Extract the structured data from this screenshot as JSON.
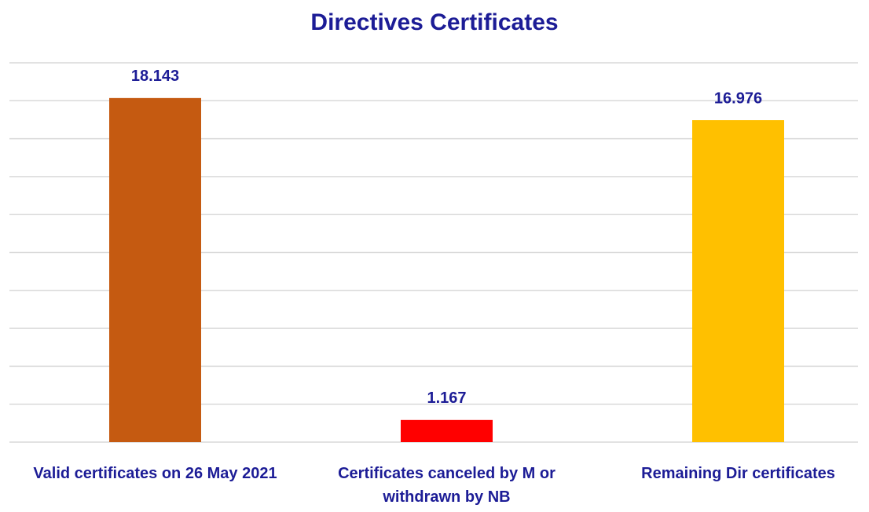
{
  "chart_data": {
    "type": "bar",
    "title": "Directives Certificates",
    "categories": [
      "Valid certificates on 26 May 2021",
      "Certificates canceled by M or withdrawn by NB",
      "Remaining Dir certificates"
    ],
    "values": [
      18143,
      1167,
      16976
    ],
    "value_labels": [
      "18.143",
      "1.167",
      "16.976"
    ],
    "colors": [
      "#c55a11",
      "#ff0000",
      "#ffc000"
    ],
    "ylim": [
      0,
      20000
    ],
    "yticks": [
      0,
      2000,
      4000,
      6000,
      8000,
      10000,
      12000,
      14000,
      16000,
      18000,
      20000
    ],
    "grid": true
  }
}
